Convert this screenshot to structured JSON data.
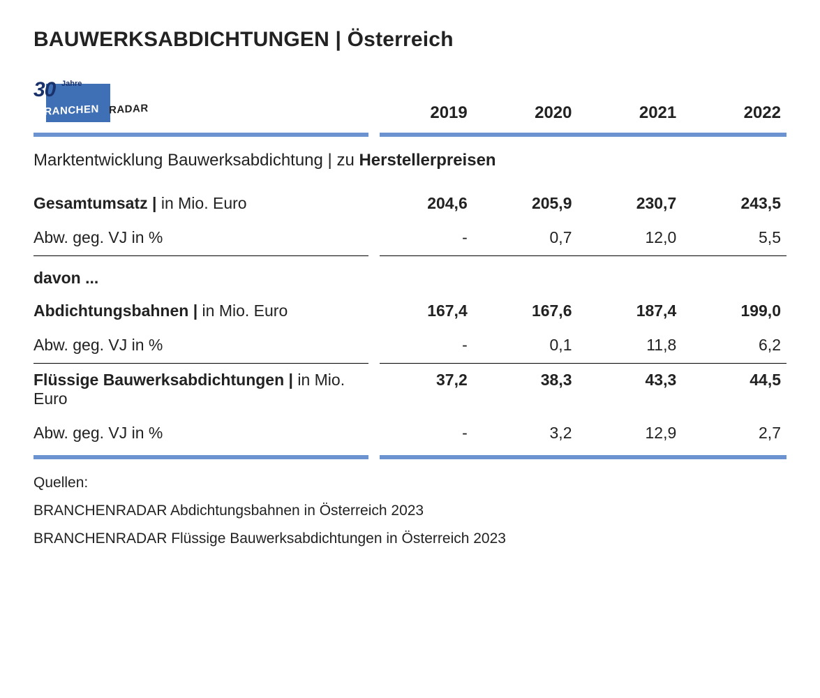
{
  "title": "BAUWERKSABDICHTUNGEN | Österreich",
  "logo": {
    "number": "30",
    "jahre": "Jahre",
    "branchen": "BRANCHEN",
    "radar": "RADAR"
  },
  "years": [
    "2019",
    "2020",
    "2021",
    "2022"
  ],
  "subtitle_pre": "Marktentwicklung Bauwerksabdichtung | zu ",
  "subtitle_bold": "Herstellerpreisen",
  "rows": {
    "gesamt_label_bold": "Gesamtumsatz | ",
    "gesamt_label_light": "in Mio. Euro",
    "gesamt_vals": [
      "204,6",
      "205,9",
      "230,7",
      "243,5"
    ],
    "gesamt_abw_label": "Abw. geg. VJ in %",
    "gesamt_abw_vals": [
      "-",
      "0,7",
      "12,0",
      "5,5"
    ],
    "davon": "davon ...",
    "bahnen_label_bold": "Abdichtungsbahnen | ",
    "bahnen_label_light": "in Mio. Euro",
    "bahnen_vals": [
      "167,4",
      "167,6",
      "187,4",
      "199,0"
    ],
    "bahnen_abw_label": "Abw. geg. VJ in %",
    "bahnen_abw_vals": [
      "-",
      "0,1",
      "11,8",
      "6,2"
    ],
    "fluessig_label_bold": "Flüssige Bauwerksabdichtungen | ",
    "fluessig_label_light": "in Mio. Euro",
    "fluessig_vals": [
      "37,2",
      "38,3",
      "43,3",
      "44,5"
    ],
    "fluessig_abw_label": "Abw. geg. VJ in %",
    "fluessig_abw_vals": [
      "-",
      "3,2",
      "12,9",
      "2,7"
    ]
  },
  "sources_title": "Quellen:",
  "sources": [
    "BRANCHENRADAR Abdichtungsbahnen in Österreich 2023",
    "BRANCHENRADAR Flüssige Bauwerksabdichtungen in Österreich 2023"
  ],
  "colors": {
    "rule": "#6a93cf",
    "logo_box": "#3f6fb5",
    "text": "#222222"
  }
}
